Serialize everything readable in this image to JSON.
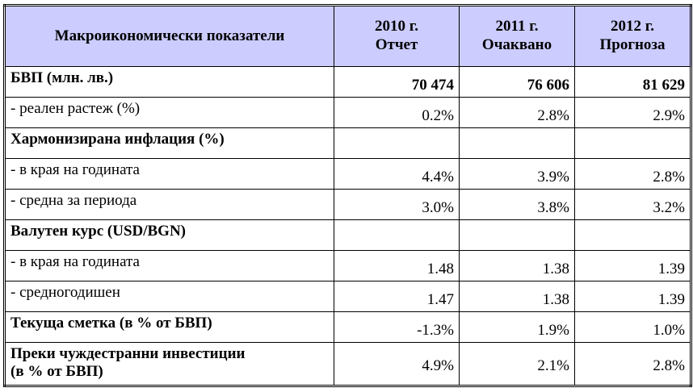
{
  "table": {
    "header": {
      "label": "Макроикономически показатели",
      "col_2010_line1": "2010 г.",
      "col_2010_line2": "Отчет",
      "col_2011_line1": "2011 г.",
      "col_2011_line2": "Очаквано",
      "col_2012_line1": "2012 г.",
      "col_2012_line2": "Прогноза"
    },
    "rows": [
      {
        "label": "БВП (млн. лв.)",
        "v2010": "70 474",
        "v2011": "76 606",
        "v2012": "81 629"
      },
      {
        "label": "- реален растеж (%)",
        "v2010": "0.2%",
        "v2011": "2.8%",
        "v2012": "2.9%"
      },
      {
        "label": "Хармонизирана инфлация (%)",
        "v2010": "",
        "v2011": "",
        "v2012": ""
      },
      {
        "label": "- в края на годината",
        "v2010": "4.4%",
        "v2011": "3.9%",
        "v2012": "2.8%"
      },
      {
        "label": "- средна за периода",
        "v2010": "3.0%",
        "v2011": "3.8%",
        "v2012": "3.2%"
      },
      {
        "label": "Валутен курс (USD/BGN)",
        "v2010": "",
        "v2011": "",
        "v2012": ""
      },
      {
        "label": "- в края на годината",
        "v2010": "1.48",
        "v2011": "1.38",
        "v2012": "1.39"
      },
      {
        "label": "- средногодишен",
        "v2010": "1.47",
        "v2011": "1.38",
        "v2012": "1.39"
      },
      {
        "label": "Текуща сметка (в % от БВП)",
        "v2010": "-1.3%",
        "v2011": "1.9%",
        "v2012": "1.0%"
      },
      {
        "label_line1": "Преки чуждестранни инвестиции",
        "label_line2": "(в % от БВП)",
        "v2010": "4.9%",
        "v2011": "2.1%",
        "v2012": "2.8%"
      }
    ]
  }
}
